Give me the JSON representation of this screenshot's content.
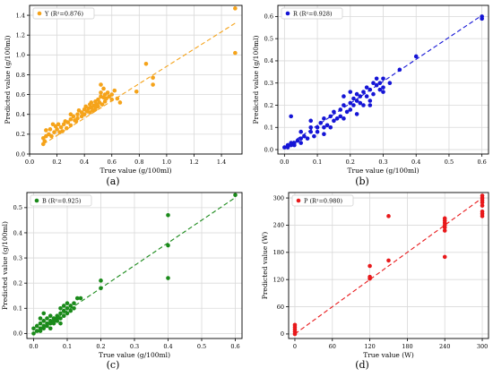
{
  "figure": {
    "panel_labels": [
      "(a)",
      "(b)",
      "(c)",
      "(d)"
    ]
  },
  "chart_data": [
    {
      "type": "scatter",
      "panel": "(a)",
      "xlabel": "True value (g/100ml)",
      "ylabel": "Predicted value (g/100ml)",
      "xlim": [
        0.0,
        1.55
      ],
      "ylim": [
        0.0,
        1.5
      ],
      "xticks": [
        0.0,
        0.2,
        0.4,
        0.6,
        0.8,
        1.0,
        1.2,
        1.4
      ],
      "xtick_labels": [
        "0.0",
        "0.2",
        "0.4",
        "0.6",
        "0.8",
        "1.0",
        "1.2",
        "1.4"
      ],
      "yticks": [
        0.0,
        0.2,
        0.4,
        0.6,
        0.8,
        1.0,
        1.2,
        1.4
      ],
      "ytick_labels": [
        "0.0",
        "0.2",
        "0.4",
        "0.6",
        "0.8",
        "1.0",
        "1.2",
        "1.4"
      ],
      "grid": true,
      "legend_position": "top-left",
      "color": "#f5a31a",
      "series": [
        {
          "name": "Y (R²=0.876)",
          "points": [
            [
              0.1,
              0.1
            ],
            [
              0.1,
              0.16
            ],
            [
              0.11,
              0.13
            ],
            [
              0.12,
              0.18
            ],
            [
              0.12,
              0.24
            ],
            [
              0.14,
              0.2
            ],
            [
              0.15,
              0.25
            ],
            [
              0.16,
              0.18
            ],
            [
              0.18,
              0.22
            ],
            [
              0.19,
              0.28
            ],
            [
              0.2,
              0.25
            ],
            [
              0.21,
              0.3
            ],
            [
              0.22,
              0.22
            ],
            [
              0.23,
              0.27
            ],
            [
              0.25,
              0.3
            ],
            [
              0.26,
              0.33
            ],
            [
              0.27,
              0.26
            ],
            [
              0.28,
              0.32
            ],
            [
              0.3,
              0.35
            ],
            [
              0.3,
              0.29
            ],
            [
              0.32,
              0.38
            ],
            [
              0.33,
              0.34
            ],
            [
              0.35,
              0.36
            ],
            [
              0.35,
              0.4
            ],
            [
              0.36,
              0.44
            ],
            [
              0.38,
              0.38
            ],
            [
              0.38,
              0.42
            ],
            [
              0.4,
              0.45
            ],
            [
              0.4,
              0.4
            ],
            [
              0.41,
              0.48
            ],
            [
              0.42,
              0.43
            ],
            [
              0.43,
              0.46
            ],
            [
              0.44,
              0.5
            ],
            [
              0.45,
              0.47
            ],
            [
              0.45,
              0.52
            ],
            [
              0.46,
              0.44
            ],
            [
              0.47,
              0.49
            ],
            [
              0.48,
              0.53
            ],
            [
              0.48,
              0.47
            ],
            [
              0.49,
              0.5
            ],
            [
              0.5,
              0.55
            ],
            [
              0.5,
              0.48
            ],
            [
              0.51,
              0.52
            ],
            [
              0.52,
              0.58
            ],
            [
              0.52,
              0.62
            ],
            [
              0.53,
              0.5
            ],
            [
              0.54,
              0.57
            ],
            [
              0.55,
              0.6
            ],
            [
              0.55,
              0.53
            ],
            [
              0.56,
              0.56
            ],
            [
              0.57,
              0.62
            ],
            [
              0.58,
              0.58
            ],
            [
              0.6,
              0.6
            ],
            [
              0.6,
              0.55
            ],
            [
              0.62,
              0.64
            ],
            [
              0.64,
              0.56
            ],
            [
              0.66,
              0.52
            ],
            [
              0.52,
              0.7
            ],
            [
              0.54,
              0.66
            ],
            [
              0.48,
              0.45
            ],
            [
              0.44,
              0.42
            ],
            [
              0.34,
              0.33
            ],
            [
              0.24,
              0.23
            ],
            [
              0.17,
              0.3
            ],
            [
              0.3,
              0.4
            ],
            [
              0.78,
              0.63
            ],
            [
              0.85,
              0.91
            ],
            [
              0.9,
              0.77
            ],
            [
              0.9,
              0.7
            ],
            [
              1.5,
              1.02
            ],
            [
              1.5,
              1.47
            ]
          ]
        }
      ],
      "fit": {
        "type": "linear",
        "points": [
          [
            0.1,
            0.1
          ],
          [
            1.5,
            1.32
          ]
        ]
      }
    },
    {
      "type": "scatter",
      "panel": "(b)",
      "xlabel": "True value (g/100ml)",
      "ylabel": "Predicted value (g/100ml)",
      "xlim": [
        -0.02,
        0.62
      ],
      "ylim": [
        -0.02,
        0.65
      ],
      "xticks": [
        0.0,
        0.1,
        0.2,
        0.3,
        0.4,
        0.5,
        0.6
      ],
      "xtick_labels": [
        "0.0",
        "0.1",
        "0.2",
        "0.3",
        "0.4",
        "0.5",
        "0.6"
      ],
      "yticks": [
        0.0,
        0.1,
        0.2,
        0.3,
        0.4,
        0.5,
        0.6
      ],
      "ytick_labels": [
        "0.0",
        "0.1",
        "0.2",
        "0.3",
        "0.4",
        "0.5",
        "0.6"
      ],
      "grid": true,
      "legend_position": "top-left",
      "color": "#1515d6",
      "series": [
        {
          "name": "R (R²=0.928)",
          "points": [
            [
              0.0,
              0.01
            ],
            [
              0.01,
              0.01
            ],
            [
              0.01,
              0.02
            ],
            [
              0.02,
              0.02
            ],
            [
              0.02,
              0.03
            ],
            [
              0.03,
              0.03
            ],
            [
              0.03,
              0.02
            ],
            [
              0.04,
              0.04
            ],
            [
              0.05,
              0.05
            ],
            [
              0.05,
              0.03
            ],
            [
              0.06,
              0.06
            ],
            [
              0.07,
              0.05
            ],
            [
              0.08,
              0.08
            ],
            [
              0.08,
              0.1
            ],
            [
              0.09,
              0.06
            ],
            [
              0.1,
              0.1
            ],
            [
              0.1,
              0.08
            ],
            [
              0.11,
              0.12
            ],
            [
              0.12,
              0.1
            ],
            [
              0.12,
              0.14
            ],
            [
              0.13,
              0.11
            ],
            [
              0.14,
              0.15
            ],
            [
              0.15,
              0.13
            ],
            [
              0.15,
              0.17
            ],
            [
              0.16,
              0.14
            ],
            [
              0.17,
              0.18
            ],
            [
              0.17,
              0.15
            ],
            [
              0.18,
              0.2
            ],
            [
              0.19,
              0.17
            ],
            [
              0.2,
              0.21
            ],
            [
              0.2,
              0.18
            ],
            [
              0.21,
              0.23
            ],
            [
              0.21,
              0.2
            ],
            [
              0.22,
              0.22
            ],
            [
              0.22,
              0.25
            ],
            [
              0.23,
              0.21
            ],
            [
              0.23,
              0.24
            ],
            [
              0.24,
              0.26
            ],
            [
              0.24,
              0.2
            ],
            [
              0.25,
              0.24
            ],
            [
              0.25,
              0.28
            ],
            [
              0.26,
              0.22
            ],
            [
              0.26,
              0.27
            ],
            [
              0.27,
              0.3
            ],
            [
              0.27,
              0.25
            ],
            [
              0.28,
              0.29
            ],
            [
              0.28,
              0.32
            ],
            [
              0.29,
              0.27
            ],
            [
              0.29,
              0.3
            ],
            [
              0.3,
              0.28
            ],
            [
              0.3,
              0.32
            ],
            [
              0.3,
              0.26
            ],
            [
              0.02,
              0.15
            ],
            [
              0.05,
              0.08
            ],
            [
              0.08,
              0.13
            ],
            [
              0.12,
              0.07
            ],
            [
              0.14,
              0.1
            ],
            [
              0.18,
              0.24
            ],
            [
              0.2,
              0.26
            ],
            [
              0.22,
              0.16
            ],
            [
              0.18,
              0.14
            ],
            [
              0.26,
              0.2
            ],
            [
              0.32,
              0.3
            ],
            [
              0.35,
              0.36
            ],
            [
              0.4,
              0.42
            ],
            [
              0.6,
              0.59
            ],
            [
              0.6,
              0.6
            ]
          ]
        }
      ],
      "fit": {
        "type": "linear",
        "points": [
          [
            0.0,
            0.01
          ],
          [
            0.6,
            0.605
          ]
        ]
      }
    },
    {
      "type": "scatter",
      "panel": "(c)",
      "xlabel": "True value (g/100ml)",
      "ylabel": "Predicted value (g/100ml)",
      "xlim": [
        -0.02,
        0.62
      ],
      "ylim": [
        -0.02,
        0.56
      ],
      "xticks": [
        0.0,
        0.1,
        0.2,
        0.3,
        0.4,
        0.5,
        0.6
      ],
      "xtick_labels": [
        "0.0",
        "0.1",
        "0.2",
        "0.3",
        "0.4",
        "0.5",
        "0.6"
      ],
      "yticks": [
        0.0,
        0.1,
        0.2,
        0.3,
        0.4,
        0.5
      ],
      "ytick_labels": [
        "0.0",
        "0.1",
        "0.2",
        "0.3",
        "0.4",
        "0.5"
      ],
      "grid": true,
      "legend_position": "top-left",
      "color": "#1a8a1a",
      "series": [
        {
          "name": "B (R²=0.925)",
          "points": [
            [
              0.0,
              0.0
            ],
            [
              0.0,
              0.02
            ],
            [
              0.01,
              0.01
            ],
            [
              0.01,
              0.03
            ],
            [
              0.02,
              0.02
            ],
            [
              0.02,
              0.04
            ],
            [
              0.02,
              0.01
            ],
            [
              0.03,
              0.03
            ],
            [
              0.03,
              0.05
            ],
            [
              0.03,
              0.02
            ],
            [
              0.04,
              0.04
            ],
            [
              0.04,
              0.06
            ],
            [
              0.04,
              0.03
            ],
            [
              0.05,
              0.05
            ],
            [
              0.05,
              0.04
            ],
            [
              0.05,
              0.07
            ],
            [
              0.06,
              0.06
            ],
            [
              0.06,
              0.05
            ],
            [
              0.06,
              0.04
            ],
            [
              0.07,
              0.07
            ],
            [
              0.07,
              0.06
            ],
            [
              0.07,
              0.05
            ],
            [
              0.08,
              0.08
            ],
            [
              0.08,
              0.06
            ],
            [
              0.08,
              0.1
            ],
            [
              0.09,
              0.09
            ],
            [
              0.09,
              0.07
            ],
            [
              0.09,
              0.11
            ],
            [
              0.1,
              0.1
            ],
            [
              0.1,
              0.08
            ],
            [
              0.1,
              0.12
            ],
            [
              0.11,
              0.11
            ],
            [
              0.11,
              0.09
            ],
            [
              0.12,
              0.12
            ],
            [
              0.12,
              0.1
            ],
            [
              0.13,
              0.14
            ],
            [
              0.14,
              0.14
            ],
            [
              0.02,
              0.06
            ],
            [
              0.03,
              0.08
            ],
            [
              0.05,
              0.02
            ],
            [
              0.08,
              0.04
            ],
            [
              0.2,
              0.18
            ],
            [
              0.2,
              0.21
            ],
            [
              0.4,
              0.22
            ],
            [
              0.4,
              0.35
            ],
            [
              0.4,
              0.47
            ],
            [
              0.6,
              0.55
            ]
          ]
        }
      ],
      "fit": {
        "type": "linear",
        "points": [
          [
            0.0,
            0.0
          ],
          [
            0.6,
            0.54
          ]
        ]
      }
    },
    {
      "type": "scatter",
      "panel": "(d)",
      "xlabel": "True value (W)",
      "ylabel": "Predicted value (W)",
      "xlim": [
        -10,
        310
      ],
      "ylim": [
        -10,
        312
      ],
      "xticks": [
        0,
        60,
        120,
        180,
        240,
        300
      ],
      "xtick_labels": [
        "0",
        "60",
        "120",
        "180",
        "240",
        "300"
      ],
      "yticks": [
        0,
        60,
        120,
        180,
        240,
        300
      ],
      "ytick_labels": [
        "0",
        "60",
        "120",
        "180",
        "240",
        "300"
      ],
      "grid": true,
      "legend_position": "top-left",
      "color": "#e8191b",
      "series": [
        {
          "name": "P (R²=0.980)",
          "points": [
            [
              0,
              0
            ],
            [
              0,
              5
            ],
            [
              0,
              10
            ],
            [
              0,
              15
            ],
            [
              0,
              20
            ],
            [
              120,
              122
            ],
            [
              120,
              126
            ],
            [
              120,
              150
            ],
            [
              150,
              162
            ],
            [
              150,
              260
            ],
            [
              240,
              170
            ],
            [
              240,
              228
            ],
            [
              240,
              235
            ],
            [
              240,
              240
            ],
            [
              240,
              245
            ],
            [
              240,
              250
            ],
            [
              240,
              255
            ],
            [
              300,
              260
            ],
            [
              300,
              265
            ],
            [
              300,
              270
            ],
            [
              300,
              283
            ],
            [
              300,
              290
            ],
            [
              300,
              295
            ],
            [
              300,
              300
            ],
            [
              300,
              305
            ]
          ]
        }
      ],
      "fit": {
        "type": "linear",
        "points": [
          [
            0,
            0
          ],
          [
            300,
            300
          ]
        ]
      }
    }
  ]
}
